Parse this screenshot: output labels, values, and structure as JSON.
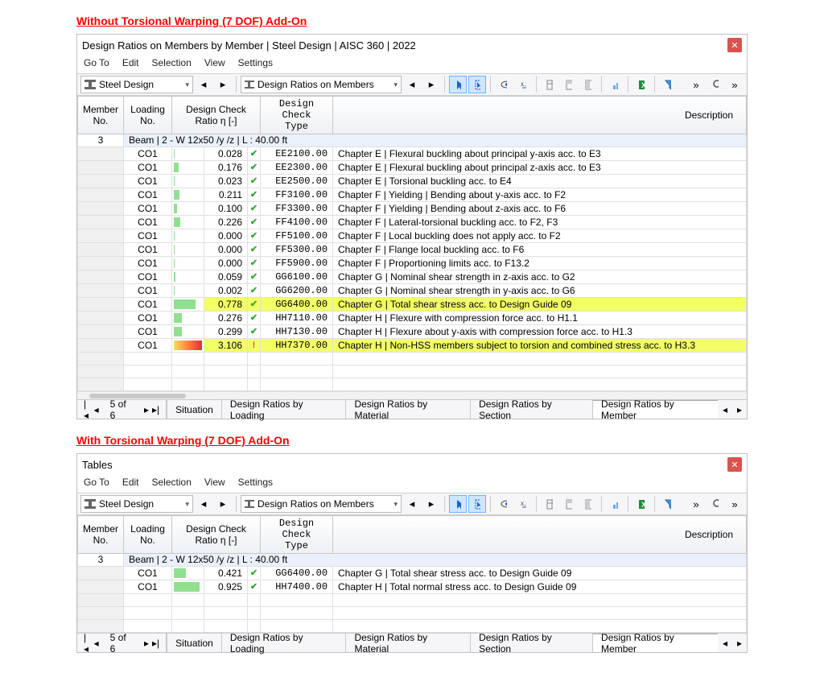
{
  "sections": [
    {
      "title": "Without Torsional Warping (7 DOF) Add-On"
    },
    {
      "title": "With Torsional Warping (7 DOF) Add-On"
    }
  ],
  "window1": {
    "title": "Design Ratios on Members by Member | Steel Design | AISC 360 | 2022"
  },
  "window2": {
    "title": "Tables"
  },
  "menu": {
    "goto": "Go To",
    "edit": "Edit",
    "selection": "Selection",
    "view": "View",
    "settings": "Settings"
  },
  "toolbar": {
    "context1": "Steel Design",
    "context2": "Design Ratios on Members",
    "more": "»"
  },
  "columns": {
    "member": "Member\nNo.",
    "loading": "Loading\nNo.",
    "ratio": "Design Check\nRatio η [-]",
    "type": "Design Check\nType",
    "desc": "Description"
  },
  "group": "Beam | 2 - W 12x50 /y /z | L : 40.00 ft",
  "memberNo": "3",
  "status": {
    "pos": "5 of 6",
    "tabs": [
      "Situation",
      "Design Ratios by Loading",
      "Design Ratios by Material",
      "Design Ratios by Section",
      "Design Ratios by Member"
    ],
    "activeTab": 4
  },
  "colors": {
    "barGreen": "#90e090",
    "barOver1": "linear-gradient(to right,#f0e060 0%,#ff7040 60%,#e03030 100%)",
    "highlight": "#f3ff66"
  },
  "rows1": [
    {
      "loading": "CO1",
      "ratio": "0.028",
      "bar": 0.028,
      "over": false,
      "type": "EE2100.00",
      "desc": "Chapter E | Flexural buckling about principal y-axis acc. to E3",
      "hl": false
    },
    {
      "loading": "CO1",
      "ratio": "0.176",
      "bar": 0.176,
      "over": false,
      "type": "EE2300.00",
      "desc": "Chapter E | Flexural buckling about principal z-axis acc. to E3",
      "hl": false
    },
    {
      "loading": "CO1",
      "ratio": "0.023",
      "bar": 0.023,
      "over": false,
      "type": "EE2500.00",
      "desc": "Chapter E | Torsional buckling acc. to E4",
      "hl": false
    },
    {
      "loading": "CO1",
      "ratio": "0.211",
      "bar": 0.211,
      "over": false,
      "type": "FF3100.00",
      "desc": "Chapter F | Yielding | Bending about y-axis acc. to F2",
      "hl": false
    },
    {
      "loading": "CO1",
      "ratio": "0.100",
      "bar": 0.1,
      "over": false,
      "type": "FF3300.00",
      "desc": "Chapter F | Yielding | Bending about z-axis acc. to F6",
      "hl": false
    },
    {
      "loading": "CO1",
      "ratio": "0.226",
      "bar": 0.226,
      "over": false,
      "type": "FF4100.00",
      "desc": "Chapter F | Lateral-torsional buckling acc. to F2, F3",
      "hl": false
    },
    {
      "loading": "CO1",
      "ratio": "0.000",
      "bar": 0.0,
      "over": false,
      "type": "FF5100.00",
      "desc": "Chapter F | Local buckling does not apply acc. to F2",
      "hl": false
    },
    {
      "loading": "CO1",
      "ratio": "0.000",
      "bar": 0.0,
      "over": false,
      "type": "FF5300.00",
      "desc": "Chapter F | Flange local buckling acc. to F6",
      "hl": false
    },
    {
      "loading": "CO1",
      "ratio": "0.000",
      "bar": 0.0,
      "over": false,
      "type": "FF5900.00",
      "desc": "Chapter F | Proportioning limits acc. to F13.2",
      "hl": false
    },
    {
      "loading": "CO1",
      "ratio": "0.059",
      "bar": 0.059,
      "over": false,
      "type": "GG6100.00",
      "desc": "Chapter G | Nominal shear strength in z-axis acc. to G2",
      "hl": false
    },
    {
      "loading": "CO1",
      "ratio": "0.002",
      "bar": 0.002,
      "over": false,
      "type": "GG6200.00",
      "desc": "Chapter G | Nominal shear strength in y-axis acc. to G6",
      "hl": false
    },
    {
      "loading": "CO1",
      "ratio": "0.778",
      "bar": 0.778,
      "over": false,
      "type": "GG6400.00",
      "desc": "Chapter G | Total shear stress acc. to Design Guide 09",
      "hl": true
    },
    {
      "loading": "CO1",
      "ratio": "0.276",
      "bar": 0.276,
      "over": false,
      "type": "HH7110.00",
      "desc": "Chapter H | Flexure with compression force acc. to H1.1",
      "hl": false
    },
    {
      "loading": "CO1",
      "ratio": "0.299",
      "bar": 0.299,
      "over": false,
      "type": "HH7130.00",
      "desc": "Chapter H | Flexure about y-axis with compression force acc. to H1.3",
      "hl": false
    },
    {
      "loading": "CO1",
      "ratio": "3.106",
      "bar": 1.0,
      "over": true,
      "type": "HH7370.00",
      "desc": "Chapter H | Non-HSS members subject to torsion and combined stress acc. to H3.3",
      "hl": true
    }
  ],
  "rows2": [
    {
      "loading": "CO1",
      "ratio": "0.421",
      "bar": 0.421,
      "over": false,
      "type": "GG6400.00",
      "desc": "Chapter G | Total shear stress acc. to Design Guide 09",
      "hl": false
    },
    {
      "loading": "CO1",
      "ratio": "0.925",
      "bar": 0.925,
      "over": false,
      "type": "HH7400.00",
      "desc": "Chapter H | Total normal stress acc. to Design Guide 09",
      "hl": false
    }
  ],
  "pad2rows": 3
}
